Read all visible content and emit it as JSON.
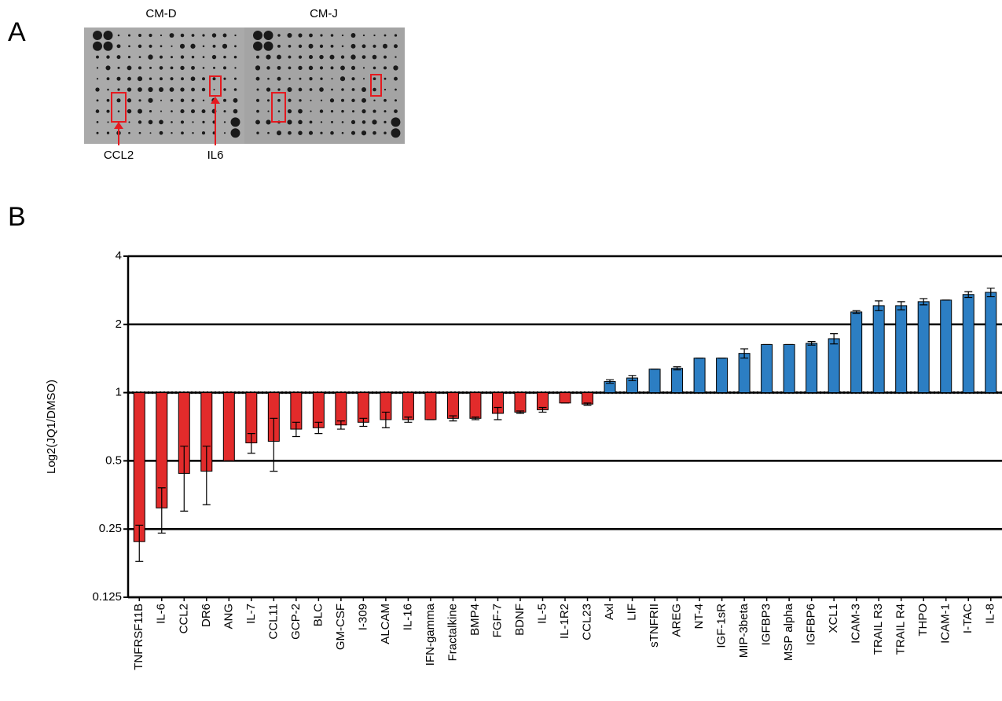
{
  "panels": {
    "a": {
      "label": "A",
      "blots": [
        "CM-D",
        "CM-J"
      ],
      "annotations": [
        "CCL2",
        "IL6"
      ]
    },
    "b": {
      "label": "B"
    }
  },
  "chart_data": {
    "type": "bar",
    "y_label": "Log2(JQ1/DMSO)",
    "log_scale": "log2",
    "baseline": 1,
    "color_below_baseline": "#e22b2b",
    "color_above_baseline": "#2c7ec3",
    "ylim": [
      0.125,
      4
    ],
    "yticks": [
      0.125,
      0.25,
      0.5,
      1,
      2,
      4
    ],
    "grid": true,
    "categories": [
      "TNFRSF11B",
      "IL-6",
      "CCL2",
      "DR6",
      "ANG",
      "IL-7",
      "CCL11",
      "GCP-2",
      "BLC",
      "GM-CSF",
      "I-309",
      "ALCAM",
      "IL-16",
      "IFN-gamma",
      "Fractalkine",
      "BMP4",
      "FGF-7",
      "BDNF",
      "IL-5",
      "IL-1R2",
      "CCL23",
      "Axl",
      "LIF",
      "sTNFRII",
      "AREG",
      "NT-4",
      "IGF-1sR",
      "MIP-3beta",
      "IGFBP3",
      "MSP alpha",
      "IGFBP6",
      "XCL1",
      "ICAM-3",
      "TRAIL R3",
      "TRAIL R4",
      "THPO",
      "ICAM-1",
      "I-TAC",
      "IL-8"
    ],
    "values": [
      0.22,
      0.31,
      0.44,
      0.45,
      0.5,
      0.6,
      0.61,
      0.69,
      0.7,
      0.72,
      0.74,
      0.76,
      0.76,
      0.76,
      0.77,
      0.77,
      0.81,
      0.82,
      0.84,
      0.9,
      0.89,
      1.12,
      1.16,
      1.27,
      1.28,
      1.42,
      1.42,
      1.49,
      1.63,
      1.63,
      1.65,
      1.73,
      2.27,
      2.42,
      2.42,
      2.52,
      2.56,
      2.71,
      2.77
    ],
    "errors": [
      0.04,
      0.07,
      0.14,
      0.13,
      0,
      0.06,
      0.16,
      0.05,
      0.04,
      0.03,
      0.03,
      0.06,
      0.02,
      0,
      0.02,
      0.01,
      0.05,
      0.01,
      0.02,
      0,
      0.01,
      0.02,
      0.03,
      0,
      0.02,
      0,
      0,
      0.07,
      0,
      0,
      0.03,
      0.09,
      0.03,
      0.12,
      0.1,
      0.08,
      0,
      0.08,
      0.12
    ]
  }
}
